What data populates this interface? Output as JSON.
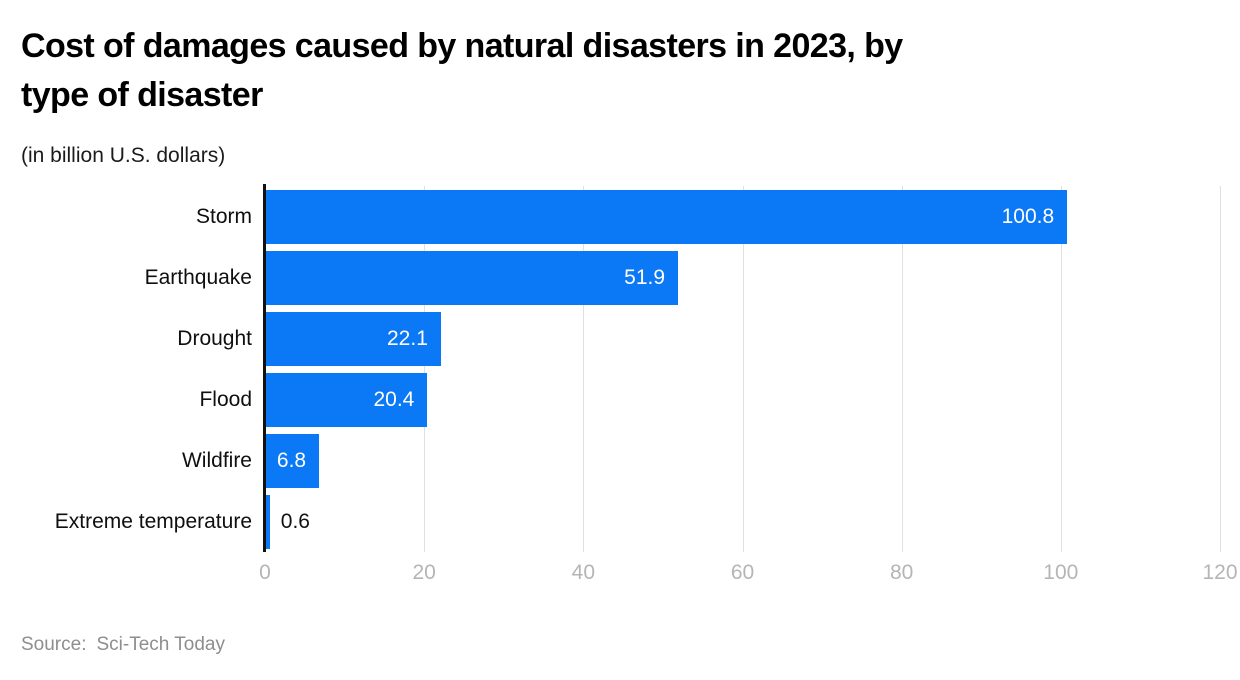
{
  "header": {
    "title": "Cost of damages caused by natural disasters in 2023, by\ntype of disaster",
    "subtitle": "(in billion U.S. dollars)"
  },
  "chart_data": {
    "type": "bar",
    "orientation": "horizontal",
    "title": "Cost of damages caused by natural disasters in 2023, by type of disaster",
    "unit_note": "(in billion U.S. dollars)",
    "categories": [
      "Storm",
      "Earthquake",
      "Drought",
      "Flood",
      "Wildfire",
      "Extreme temperature"
    ],
    "values": [
      100.8,
      51.9,
      22.1,
      20.4,
      6.8,
      0.6
    ],
    "value_labels": [
      "100.8",
      "51.9",
      "22.1",
      "20.4",
      "6.8",
      "0.6"
    ],
    "xlabel": "",
    "ylabel": "",
    "xlim": [
      0,
      120
    ],
    "x_ticks": [
      0,
      20,
      40,
      60,
      80,
      100,
      120
    ],
    "grid": true,
    "legend": false,
    "bar_color": "#0b78f5",
    "gridline_color": "#e0e0e0",
    "axis_line_color": "#111111",
    "tick_label_color": "#b5b5b5",
    "value_label_inside_color": "#ffffff",
    "value_label_outside_color": "#111111"
  },
  "source": {
    "label": "Source:",
    "value": "Sci-Tech Today"
  }
}
